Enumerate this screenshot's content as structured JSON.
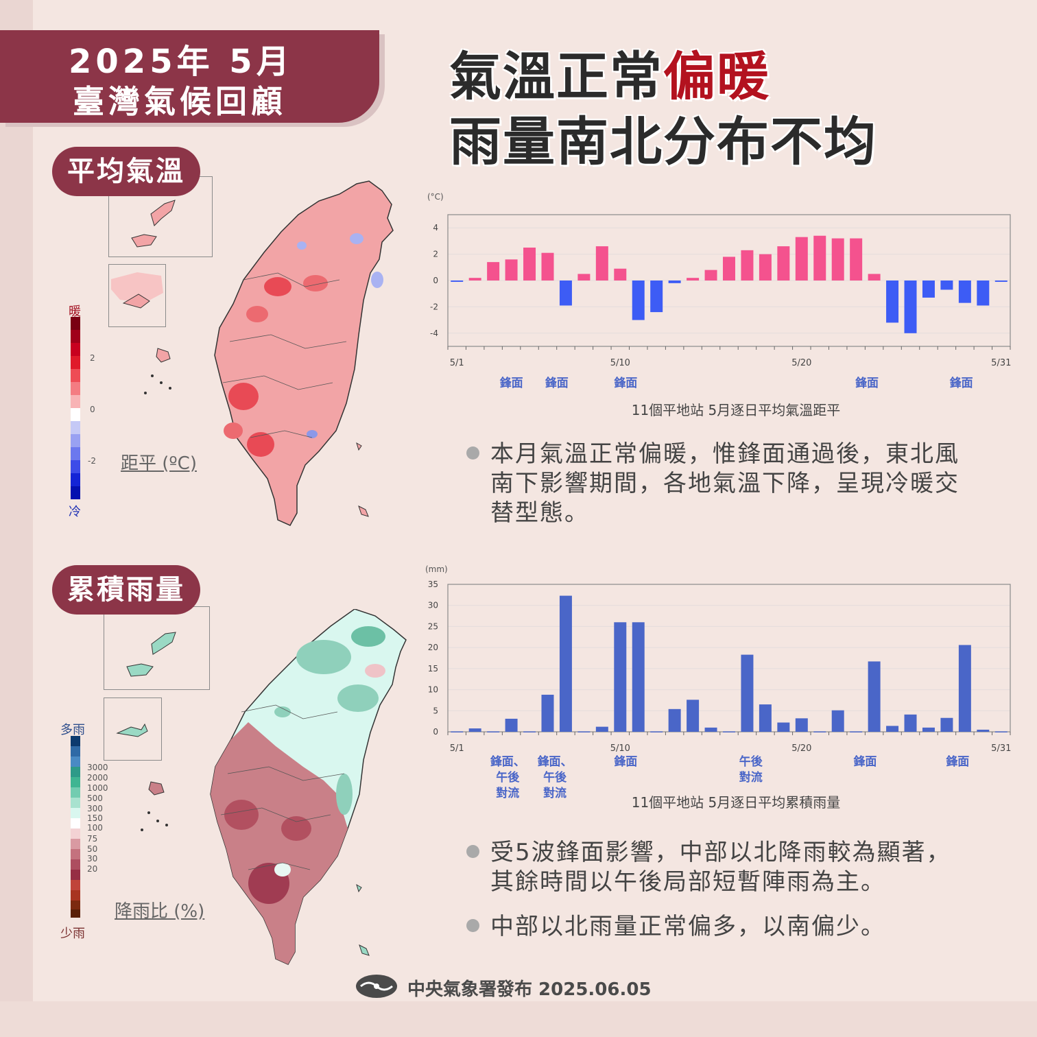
{
  "header": {
    "line1": "2025年 5月",
    "line2": "臺灣氣候回顧"
  },
  "headline": {
    "line1_black": "氣溫正常",
    "line1_red": "偏暖",
    "line2": "雨量南北分布不均"
  },
  "colors": {
    "accent": "#8c3548",
    "headline_red": "#b3121f",
    "warm_bar": "#f4528e",
    "cold_bar": "#3d5cf5",
    "rain_bar": "#4a66c8",
    "annotation": "#4a66c8"
  },
  "temp_section": {
    "pill": "平均氣溫",
    "colorbar": {
      "top_label": "暖",
      "bottom_label": "冷",
      "ticks": [
        "2",
        "0",
        "-2"
      ],
      "title": "距平 (ºC)"
    },
    "bullet": [
      "本月氣溫正常偏暖，惟鋒面通過後，東北風",
      "南下影響期間，各地氣溫下降，呈現冷暖交",
      "替型態。"
    ]
  },
  "rain_section": {
    "pill": "累積雨量",
    "colorbar": {
      "top_label": "多雨",
      "bottom_label": "少雨",
      "ticks": [
        "3000",
        "2000",
        "1000",
        "500",
        "300",
        "150",
        "100",
        "75",
        "50",
        "30",
        "20"
      ],
      "title": "降雨比 (%)"
    },
    "bullets": [
      [
        "受5波鋒面影響，中部以北降雨較為顯著，",
        "其餘時間以午後局部短暫陣雨為主。"
      ],
      [
        "中部以北雨量正常偏多，以南偏少。"
      ]
    ]
  },
  "chart_data": [
    {
      "type": "bar",
      "title": "11個平地站 5月逐日平均氣溫距平",
      "ylabel": "(°C)",
      "ylim": [
        -5,
        5
      ],
      "yticks": [
        "4",
        "2",
        "0",
        "-2",
        "-4"
      ],
      "xtick_labels": {
        "1": "5/1",
        "10": "5/10",
        "20": "5/20",
        "31": "5/31"
      },
      "categories": [
        "5/1",
        "5/2",
        "5/3",
        "5/4",
        "5/5",
        "5/6",
        "5/7",
        "5/8",
        "5/9",
        "5/10",
        "5/11",
        "5/12",
        "5/13",
        "5/14",
        "5/15",
        "5/16",
        "5/17",
        "5/18",
        "5/19",
        "5/20",
        "5/21",
        "5/22",
        "5/23",
        "5/24",
        "5/25",
        "5/26",
        "5/27",
        "5/28",
        "5/29",
        "5/30",
        "5/31"
      ],
      "values": [
        -0.1,
        0.2,
        1.4,
        1.6,
        2.5,
        2.1,
        -1.9,
        0.5,
        2.6,
        0.9,
        -3.0,
        -2.4,
        -0.2,
        0.2,
        0.8,
        1.8,
        2.3,
        2.0,
        2.6,
        3.3,
        3.4,
        3.2,
        3.2,
        0.5,
        -3.2,
        -4.0,
        -1.3,
        -0.7,
        -1.7,
        -1.9,
        -0.1
      ],
      "annotations": [
        {
          "day": 4,
          "text": [
            "鋒面"
          ]
        },
        {
          "day": 6.5,
          "text": [
            "鋒面"
          ]
        },
        {
          "day": 10.3,
          "text": [
            "鋒面"
          ]
        },
        {
          "day": 23.6,
          "text": [
            "鋒面"
          ]
        },
        {
          "day": 28.8,
          "text": [
            "鋒面"
          ]
        }
      ]
    },
    {
      "type": "bar",
      "title": "11個平地站 5月逐日平均累積雨量",
      "ylabel": "(mm)",
      "ylim": [
        0,
        35
      ],
      "yticks": [
        "35",
        "30",
        "25",
        "20",
        "15",
        "10",
        "5",
        "0"
      ],
      "xtick_labels": {
        "1": "5/1",
        "10": "5/10",
        "20": "5/20",
        "31": "5/31"
      },
      "categories": [
        "5/1",
        "5/2",
        "5/3",
        "5/4",
        "5/5",
        "5/6",
        "5/7",
        "5/8",
        "5/9",
        "5/10",
        "5/11",
        "5/12",
        "5/13",
        "5/14",
        "5/15",
        "5/16",
        "5/17",
        "5/18",
        "5/19",
        "5/20",
        "5/21",
        "5/22",
        "5/23",
        "5/24",
        "5/25",
        "5/26",
        "5/27",
        "5/28",
        "5/29",
        "5/30",
        "5/31"
      ],
      "values": [
        0.1,
        0.8,
        0.1,
        3.1,
        0.1,
        8.8,
        32.3,
        0.1,
        1.2,
        26.0,
        26.0,
        0.1,
        5.4,
        7.6,
        1.0,
        0.1,
        18.3,
        6.5,
        2.2,
        3.2,
        0.1,
        5.1,
        0.1,
        16.7,
        1.4,
        4.1,
        1.0,
        3.3,
        20.6,
        0.5,
        0.1
      ],
      "annotations": [
        {
          "day": 3.8,
          "text": [
            "鋒面、",
            "午後",
            "對流"
          ]
        },
        {
          "day": 6.4,
          "text": [
            "鋒面、",
            "午後",
            "對流"
          ]
        },
        {
          "day": 10.3,
          "text": [
            "鋒面"
          ]
        },
        {
          "day": 17.2,
          "text": [
            "午後",
            "對流"
          ]
        },
        {
          "day": 23.5,
          "text": [
            "鋒面"
          ]
        },
        {
          "day": 28.6,
          "text": [
            "鋒面"
          ]
        }
      ]
    }
  ],
  "footer": {
    "text": "中央氣象署發布 2025.06.05"
  }
}
